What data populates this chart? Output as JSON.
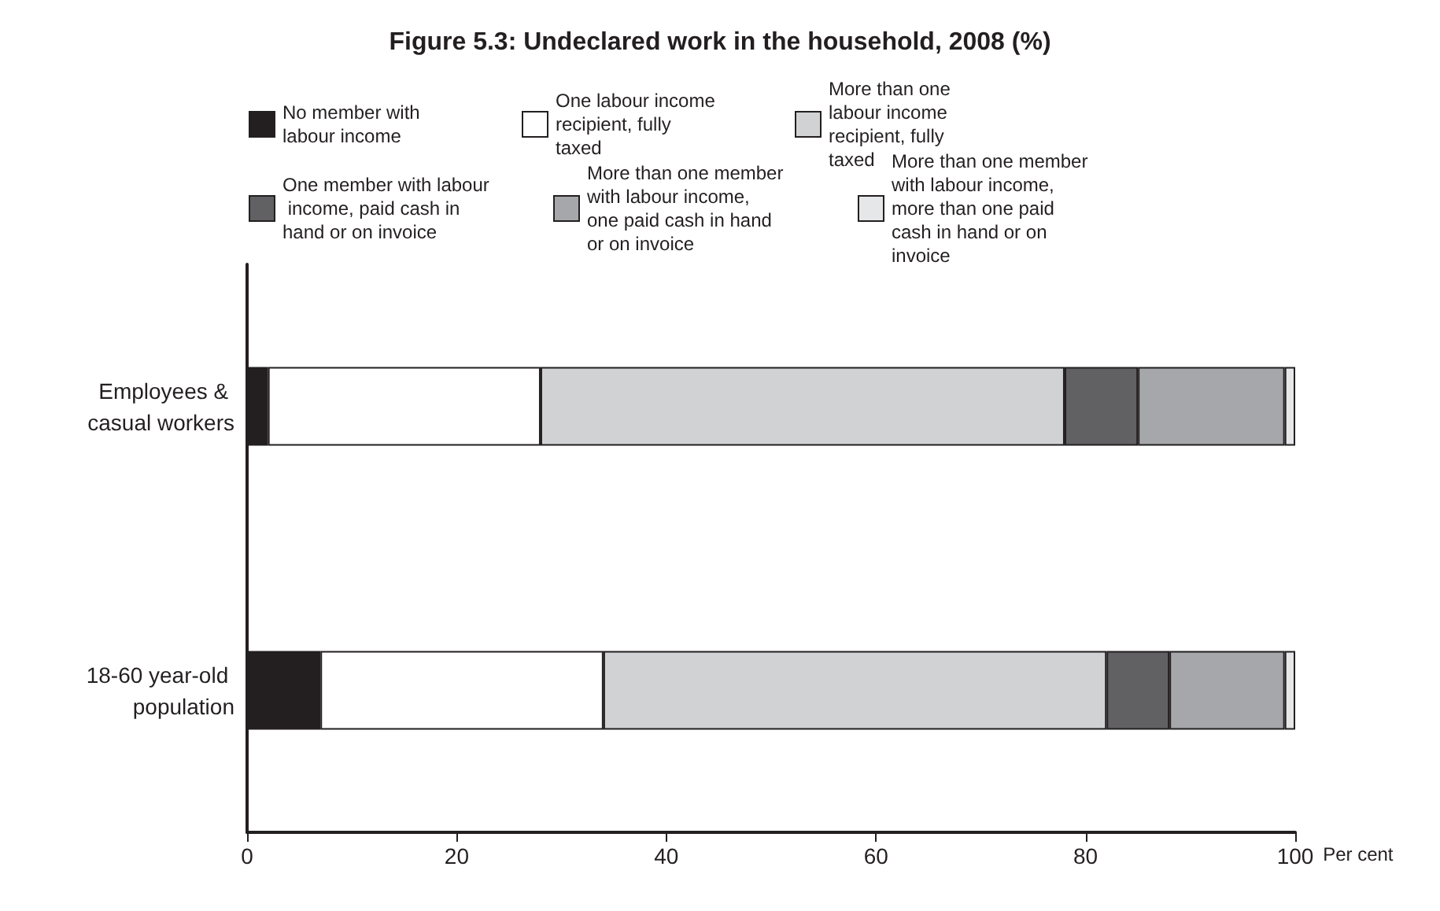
{
  "chart_data": {
    "type": "bar",
    "orientation": "horizontal",
    "stacked": true,
    "title": "Figure 5.3: Undeclared work in the household, 2008 (%)",
    "xlabel": "Per cent",
    "categories": [
      "Employees & casual workers",
      "18-60 year-old population"
    ],
    "series": [
      {
        "name": "No member with labour income",
        "color": "#231f20",
        "values": [
          2,
          7
        ]
      },
      {
        "name": "One labour income recipient, fully taxed",
        "color": "#ffffff",
        "values": [
          26,
          27
        ]
      },
      {
        "name": "More than one labour income recipient, fully taxed",
        "color": "#d1d2d4",
        "values": [
          50,
          48
        ]
      },
      {
        "name": "One member with labour income, paid cash in hand or on invoice",
        "color": "#616062",
        "values": [
          7,
          6
        ]
      },
      {
        "name": "More than one member with labour income, one paid cash in hand or on invoice",
        "color": "#a6a7aa",
        "values": [
          14,
          11
        ]
      },
      {
        "name": "More than one member with labour income, more than one paid cash in hand or on invoice",
        "color": "#e6e7e8",
        "values": [
          1,
          1
        ]
      }
    ],
    "xlim": [
      0,
      100
    ],
    "xticks": [
      0,
      20,
      40,
      60,
      80,
      100
    ],
    "grid": false,
    "legend": "top"
  }
}
